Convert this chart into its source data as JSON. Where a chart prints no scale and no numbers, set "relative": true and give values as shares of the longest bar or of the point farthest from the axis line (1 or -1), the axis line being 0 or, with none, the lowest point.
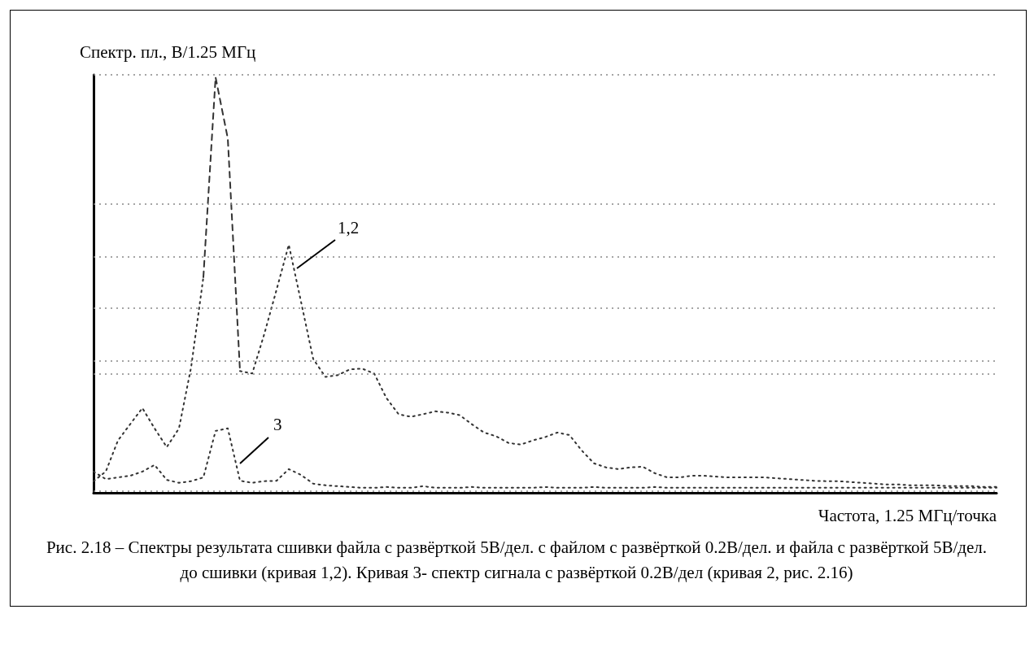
{
  "chart_data": {
    "type": "line",
    "relative": true,
    "ylabel": "Спектр. пл., В/1.25 МГц",
    "xlabel": "Частота, 1.25 МГц/точка",
    "categories": [
      null,
      null,
      null,
      null,
      null,
      null,
      null,
      null,
      null,
      null,
      null,
      null,
      null,
      null,
      null,
      null,
      null,
      null,
      null,
      null,
      null,
      null,
      null,
      null,
      null,
      null,
      null,
      null,
      null,
      null,
      null,
      null,
      null,
      null,
      null,
      null,
      null,
      null,
      null,
      null,
      null,
      null,
      null,
      null,
      null,
      null,
      null,
      null,
      null,
      null,
      null,
      null,
      null,
      null,
      null,
      null,
      null,
      null,
      null,
      null,
      null,
      null,
      null,
      null,
      null,
      null,
      null,
      null,
      null,
      null,
      null,
      null,
      null,
      null,
      null
    ],
    "series": [
      {
        "color": "#333333",
        "line_style": "dotted",
        "values": [
          0.028,
          0.051,
          0.126,
          0.165,
          0.204,
          0.155,
          0.11,
          0.155,
          0.303,
          0.519,
          null,
          null,
          0.293,
          0.287,
          0.383,
          0.489,
          0.597,
          0.46,
          0.322,
          0.279,
          0.283,
          0.297,
          0.299,
          0.287,
          0.228,
          0.189,
          0.183,
          0.189,
          0.196,
          0.193,
          0.187,
          0.165,
          0.145,
          0.136,
          0.12,
          0.116,
          0.126,
          0.134,
          0.145,
          0.139,
          0.102,
          0.071,
          0.061,
          0.057,
          0.061,
          0.063,
          0.047,
          0.037,
          0.037,
          0.041,
          0.041,
          0.039,
          0.037,
          0.037,
          0.037,
          0.037,
          0.035,
          0.033,
          0.031,
          0.029,
          0.028,
          0.028,
          0.026,
          0.024,
          0.022,
          0.02,
          0.02,
          0.018,
          0.018,
          0.018,
          0.016,
          0.016,
          0.016,
          0.014,
          0.014
        ]
      },
      {
        "color": "#333333",
        "line_style": "dashed",
        "values": [
          null,
          null,
          null,
          null,
          null,
          null,
          null,
          null,
          null,
          0.519,
          1,
          0.853,
          0.293,
          null,
          null,
          null,
          null,
          null,
          null,
          null,
          null,
          null,
          null,
          null,
          null,
          null,
          null,
          null,
          null,
          null,
          null,
          null,
          null,
          null,
          null,
          null,
          null,
          null,
          null,
          null,
          null,
          null,
          null,
          null,
          null,
          null,
          null,
          null,
          null,
          null,
          null,
          null,
          null,
          null,
          null,
          null,
          null,
          null,
          null,
          null,
          null,
          null,
          null,
          null,
          null,
          null,
          null,
          null,
          null,
          null,
          null,
          null,
          null,
          null,
          null
        ]
      },
      {
        "color": "#333333",
        "line_style": "dotted",
        "values": [
          0.051,
          0.033,
          0.037,
          0.041,
          0.051,
          0.067,
          0.031,
          0.024,
          0.028,
          0.037,
          0.149,
          0.155,
          0.029,
          0.024,
          0.028,
          0.029,
          0.057,
          0.043,
          0.022,
          0.018,
          0.016,
          0.014,
          0.012,
          0.012,
          0.014,
          0.012,
          0.012,
          0.016,
          0.012,
          0.012,
          0.012,
          0.014,
          0.012,
          0.012,
          0.012,
          0.012,
          0.012,
          0.014,
          0.012,
          0.012,
          0.012,
          0.014,
          0.012,
          0.012,
          0.012,
          0.012,
          0.014,
          0.012,
          0.012,
          0.012,
          0.012,
          0.012,
          0.012,
          0.012,
          0.012,
          0.012,
          0.012,
          0.012,
          0.012,
          0.012,
          0.012,
          0.012,
          0.012,
          0.012,
          0.012,
          0.012,
          0.012,
          0.012,
          0.012,
          0.012,
          0.012,
          0.012,
          0.012,
          0.012,
          0.012
        ]
      }
    ],
    "marker": "none",
    "ref_lines": [
      {
        "axis": "y",
        "value": 1.006,
        "color": "#888888",
        "line_style": "dotted"
      },
      {
        "axis": "y",
        "value": 0.695,
        "color": "#888888",
        "line_style": "dotted"
      },
      {
        "axis": "y",
        "value": 0.568,
        "color": "#888888",
        "line_style": "dotted"
      },
      {
        "axis": "y",
        "value": 0.444,
        "color": "#888888",
        "line_style": "dotted"
      },
      {
        "axis": "y",
        "value": 0.318,
        "color": "#888888",
        "line_style": "dotted"
      },
      {
        "axis": "y",
        "value": 0.287,
        "color": "#888888",
        "line_style": "dotted"
      },
      {
        "axis": "y",
        "value": 0.004,
        "color": "#888888",
        "line_style": "dotted"
      }
    ],
    "annotations": [
      "1,2",
      "3",
      "Рис. 2.18 – Спектры результата сшивки файла с развёрткой 5В/дел. с файлом с развёрткой 0.2В/дел. и файла с развёрткой 5В/дел. до сшивки (кривая 1,2). Кривая 3- спектр сигнала с развёрткой 0.2В/дел (кривая 2, рис. 2.16)"
    ]
  }
}
